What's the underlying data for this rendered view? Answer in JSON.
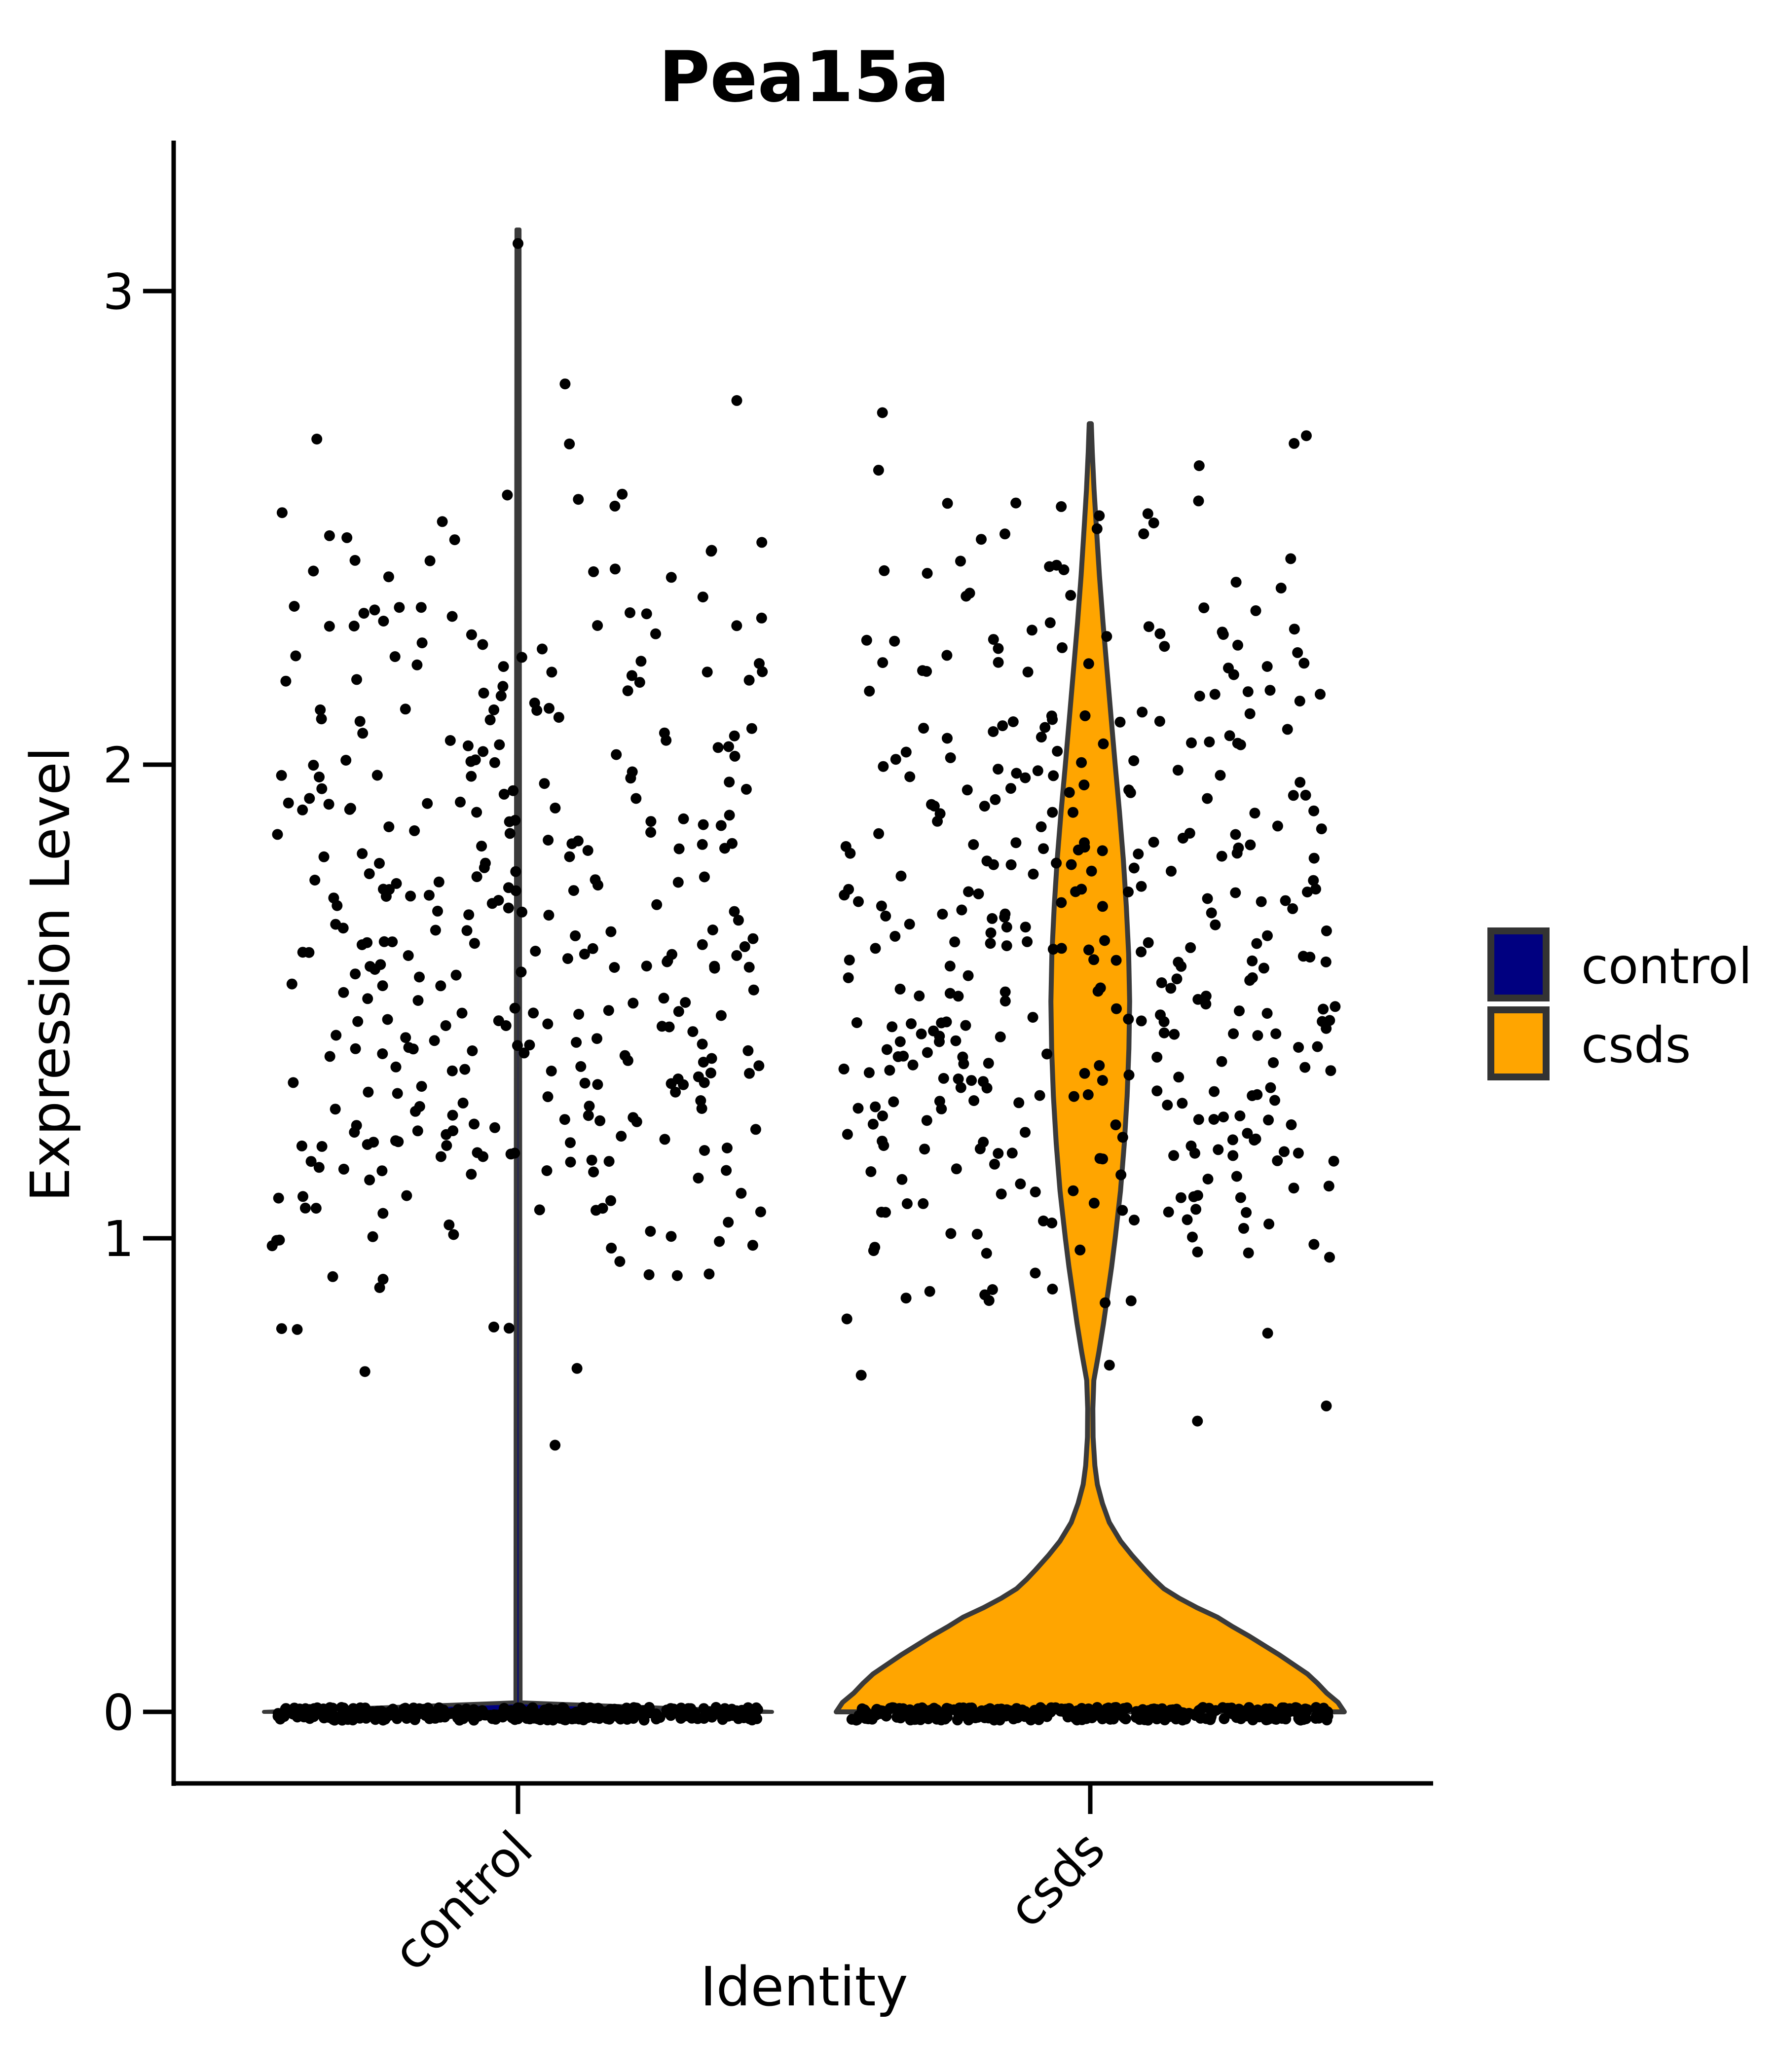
{
  "chart_data": {
    "type": "violin",
    "title": "Pea15a",
    "xlabel": "Identity",
    "ylabel": "Expression Level",
    "categories": [
      "control",
      "csds"
    ],
    "y_ticks": [
      "0",
      "1",
      "2",
      "3"
    ],
    "ylim": [
      -0.17,
      3.31
    ],
    "grid": "off",
    "outline_color": "#3A3A3A",
    "point_color": "#000000",
    "axis_color": "#000000",
    "jitter_seed": 42,
    "legend": {
      "position": "right",
      "entries": [
        {
          "label": "control",
          "color": "#000080"
        },
        {
          "label": "csds",
          "color": "#FFA500"
        }
      ]
    },
    "groups": [
      {
        "name": "control",
        "fill": "#000080",
        "max_expression": 3.13,
        "violin_profile": [
          [
            0,
            1.0
          ],
          [
            0.02,
            0.01
          ],
          [
            3.13,
            0.006
          ]
        ],
        "zero_band": {
          "count": 380
        },
        "scatter_bins": [
          [
            0.55,
            0.75,
            3
          ],
          [
            0.75,
            0.9,
            5
          ],
          [
            0.9,
            1.0,
            12
          ],
          [
            1.0,
            1.1,
            18
          ],
          [
            1.1,
            1.2,
            24
          ],
          [
            1.2,
            1.3,
            28
          ],
          [
            1.3,
            1.4,
            30
          ],
          [
            1.4,
            1.5,
            28
          ],
          [
            1.5,
            1.6,
            27
          ],
          [
            1.6,
            1.7,
            26
          ],
          [
            1.7,
            1.8,
            26
          ],
          [
            1.8,
            1.9,
            25
          ],
          [
            1.9,
            2.0,
            23
          ],
          [
            2.0,
            2.1,
            21
          ],
          [
            2.1,
            2.2,
            18
          ],
          [
            2.2,
            2.3,
            16
          ],
          [
            2.3,
            2.4,
            13
          ],
          [
            2.4,
            2.5,
            11
          ],
          [
            2.5,
            2.6,
            6
          ],
          [
            2.6,
            2.7,
            2
          ],
          [
            2.75,
            2.85,
            2
          ],
          [
            3.1,
            3.16,
            1,
            0.5
          ]
        ]
      },
      {
        "name": "csds",
        "fill": "#FFA500",
        "max_expression": 2.72,
        "violin_profile": [
          [
            0,
            1.0
          ],
          [
            0.02,
            0.975
          ],
          [
            0.04,
            0.93
          ],
          [
            0.06,
            0.895
          ],
          [
            0.08,
            0.855
          ],
          [
            0.1,
            0.8
          ],
          [
            0.12,
            0.745
          ],
          [
            0.14,
            0.685
          ],
          [
            0.16,
            0.625
          ],
          [
            0.18,
            0.56
          ],
          [
            0.2,
            0.5
          ],
          [
            0.22,
            0.42
          ],
          [
            0.24,
            0.35
          ],
          [
            0.26,
            0.29
          ],
          [
            0.28,
            0.25
          ],
          [
            0.3,
            0.215
          ],
          [
            0.33,
            0.165
          ],
          [
            0.36,
            0.12
          ],
          [
            0.4,
            0.075
          ],
          [
            0.44,
            0.048
          ],
          [
            0.48,
            0.028
          ],
          [
            0.52,
            0.018
          ],
          [
            0.58,
            0.011
          ],
          [
            0.64,
            0.01
          ],
          [
            0.7,
            0.014
          ],
          [
            0.76,
            0.034
          ],
          [
            0.82,
            0.052
          ],
          [
            0.88,
            0.068
          ],
          [
            0.94,
            0.084
          ],
          [
            1.0,
            0.098
          ],
          [
            1.1,
            0.119
          ],
          [
            1.2,
            0.134
          ],
          [
            1.3,
            0.145
          ],
          [
            1.4,
            0.152
          ],
          [
            1.5,
            0.155
          ],
          [
            1.6,
            0.151
          ],
          [
            1.7,
            0.142
          ],
          [
            1.8,
            0.13
          ],
          [
            1.9,
            0.115
          ],
          [
            2.0,
            0.098
          ],
          [
            2.1,
            0.082
          ],
          [
            2.2,
            0.066
          ],
          [
            2.3,
            0.05
          ],
          [
            2.4,
            0.036
          ],
          [
            2.5,
            0.024
          ],
          [
            2.58,
            0.015
          ],
          [
            2.66,
            0.008
          ],
          [
            2.72,
            0.004
          ]
        ],
        "zero_band": {
          "count": 380
        },
        "scatter_bins": [
          [
            0.58,
            0.7,
            2
          ],
          [
            0.7,
            0.85,
            4
          ],
          [
            0.85,
            0.95,
            9
          ],
          [
            0.95,
            1.05,
            17
          ],
          [
            1.05,
            1.15,
            25
          ],
          [
            1.15,
            1.25,
            31
          ],
          [
            1.25,
            1.35,
            34
          ],
          [
            1.35,
            1.45,
            34
          ],
          [
            1.45,
            1.55,
            32
          ],
          [
            1.55,
            1.65,
            30
          ],
          [
            1.65,
            1.75,
            30
          ],
          [
            1.75,
            1.85,
            28
          ],
          [
            1.85,
            1.95,
            24
          ],
          [
            1.95,
            2.05,
            22
          ],
          [
            2.05,
            2.15,
            20
          ],
          [
            2.15,
            2.25,
            18
          ],
          [
            2.25,
            2.35,
            14
          ],
          [
            2.35,
            2.45,
            12
          ],
          [
            2.45,
            2.55,
            8
          ],
          [
            2.55,
            2.65,
            5
          ],
          [
            2.65,
            2.75,
            3
          ]
        ]
      }
    ]
  }
}
